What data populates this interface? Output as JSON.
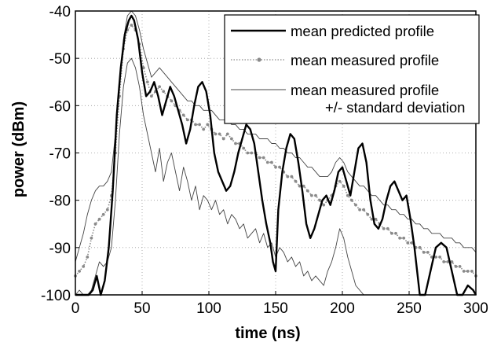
{
  "chart_data": {
    "type": "line",
    "xlabel": "time (ns)",
    "ylabel": "power (dBm)",
    "xlim": [
      0,
      300
    ],
    "ylim": [
      -100,
      -40
    ],
    "grid": true,
    "legend_position": "top-right",
    "x_ticks": [
      "0",
      "50",
      "100",
      "150",
      "200",
      "250",
      "300"
    ],
    "y_ticks": [
      "-40",
      "-50",
      "-60",
      "-70",
      "-80",
      "-90",
      "-100"
    ],
    "legend": [
      {
        "label": "mean predicted profile",
        "style": "solid-thick"
      },
      {
        "label": "mean measured profile",
        "style": "dotted-markers"
      },
      {
        "label": "mean measured profile",
        "label2": "+/- standard deviation",
        "style": "thin"
      }
    ],
    "colors": {
      "predicted": "#000000",
      "measured": "#8a8a8a",
      "deviation": "#444444"
    },
    "series": [
      {
        "key": "predicted",
        "x": [
          0,
          3,
          6,
          10,
          13,
          16,
          19,
          22,
          25,
          28,
          31,
          34,
          37,
          40,
          42,
          44,
          47,
          50,
          53,
          56,
          59,
          62,
          65,
          68,
          71,
          74,
          77,
          80,
          83,
          86,
          89,
          92,
          95,
          98,
          101,
          104,
          107,
          110,
          113,
          116,
          119,
          122,
          125,
          128,
          131,
          134,
          137,
          140,
          143,
          146,
          148,
          150,
          152,
          155,
          158,
          161,
          164,
          167,
          170,
          173,
          176,
          179,
          182,
          185,
          188,
          191,
          194,
          197,
          200,
          203,
          206,
          209,
          212,
          215,
          218,
          221,
          224,
          227,
          230,
          233,
          236,
          239,
          242,
          245,
          248,
          251,
          254,
          256,
          258,
          262,
          266,
          270,
          274,
          278,
          282,
          286,
          290,
          294,
          298,
          300
        ],
        "y": [
          -100,
          -100,
          -100,
          -100,
          -99,
          -96,
          -100,
          -97,
          -90,
          -78,
          -62,
          -52,
          -45,
          -42,
          -41,
          -42,
          -46,
          -53,
          -58,
          -57,
          -55,
          -58,
          -62,
          -59,
          -56,
          -58,
          -61,
          -64,
          -68,
          -65,
          -60,
          -56,
          -55,
          -57,
          -62,
          -70,
          -74,
          -76,
          -78,
          -77,
          -74,
          -70,
          -67,
          -64,
          -65,
          -68,
          -74,
          -80,
          -85,
          -89,
          -93,
          -95,
          -82,
          -74,
          -69,
          -66,
          -67,
          -72,
          -78,
          -85,
          -88,
          -86,
          -83,
          -80,
          -79,
          -81,
          -78,
          -74,
          -73,
          -76,
          -79,
          -74,
          -69,
          -68,
          -72,
          -80,
          -85,
          -86,
          -84,
          -80,
          -77,
          -76,
          -78,
          -80,
          -79,
          -84,
          -90,
          -95,
          -100,
          -100,
          -95,
          -90,
          -89,
          -90,
          -95,
          -100,
          -100,
          -98,
          -99,
          -100
        ]
      },
      {
        "key": "measured",
        "x": [
          0,
          3,
          6,
          9,
          12,
          15,
          18,
          21,
          24,
          27,
          30,
          33,
          36,
          39,
          42,
          45,
          48,
          51,
          54,
          57,
          60,
          63,
          66,
          69,
          72,
          75,
          78,
          81,
          84,
          87,
          90,
          93,
          96,
          99,
          102,
          105,
          108,
          111,
          114,
          117,
          120,
          123,
          126,
          129,
          132,
          135,
          138,
          141,
          144,
          147,
          150,
          153,
          156,
          159,
          162,
          165,
          168,
          171,
          174,
          177,
          180,
          183,
          186,
          189,
          192,
          195,
          198,
          201,
          204,
          207,
          210,
          213,
          216,
          219,
          222,
          225,
          228,
          231,
          234,
          237,
          240,
          243,
          246,
          249,
          252,
          255,
          258,
          261,
          264,
          267,
          270,
          273,
          276,
          279,
          282,
          285,
          288,
          291,
          294,
          297,
          300
        ],
        "y": [
          -96,
          -95,
          -94,
          -92,
          -88,
          -85,
          -84,
          -83,
          -82,
          -79,
          -70,
          -58,
          -48,
          -44,
          -43,
          -44,
          -47,
          -52,
          -55,
          -58,
          -57,
          -56,
          -57,
          -58,
          -59,
          -60,
          -61,
          -62,
          -63,
          -63,
          -64,
          -64,
          -65,
          -64,
          -65,
          -66,
          -66,
          -67,
          -66,
          -67,
          -68,
          -68,
          -69,
          -70,
          -70,
          -70,
          -71,
          -71,
          -72,
          -72,
          -73,
          -73,
          -74,
          -75,
          -75,
          -76,
          -77,
          -77,
          -78,
          -79,
          -79,
          -80,
          -81,
          -80,
          -79,
          -77,
          -76,
          -77,
          -79,
          -80,
          -81,
          -82,
          -82,
          -83,
          -84,
          -84,
          -85,
          -86,
          -86,
          -87,
          -87,
          -88,
          -88,
          -89,
          -89,
          -90,
          -90,
          -91,
          -91,
          -92,
          -92,
          -92,
          -93,
          -93,
          -93,
          -94,
          -94,
          -95,
          -95,
          -95,
          -96
        ]
      },
      {
        "key": "upper",
        "x": [
          0,
          3,
          6,
          9,
          12,
          15,
          18,
          21,
          24,
          27,
          30,
          33,
          36,
          39,
          42,
          45,
          48,
          51,
          54,
          57,
          60,
          63,
          66,
          69,
          72,
          75,
          78,
          81,
          84,
          87,
          90,
          93,
          96,
          99,
          102,
          105,
          108,
          111,
          114,
          117,
          120,
          123,
          126,
          129,
          132,
          135,
          138,
          141,
          144,
          147,
          150,
          153,
          156,
          159,
          162,
          165,
          168,
          171,
          174,
          177,
          180,
          183,
          186,
          189,
          192,
          195,
          198,
          201,
          204,
          207,
          210,
          213,
          216,
          219,
          222,
          225,
          228,
          231,
          234,
          237,
          240,
          243,
          246,
          249,
          252,
          255,
          258,
          261,
          264,
          267,
          270,
          273,
          276,
          279,
          282,
          285,
          288,
          291,
          294,
          297,
          300
        ],
        "y": [
          -93,
          -90,
          -87,
          -83,
          -80,
          -78,
          -77,
          -77,
          -76,
          -74,
          -66,
          -55,
          -46,
          -41,
          -40,
          -41,
          -44,
          -48,
          -51,
          -54,
          -53,
          -52,
          -53,
          -54,
          -55,
          -56,
          -57,
          -58,
          -59,
          -59,
          -60,
          -60,
          -61,
          -61,
          -61,
          -62,
          -63,
          -63,
          -63,
          -64,
          -64,
          -65,
          -65,
          -66,
          -66,
          -66,
          -67,
          -67,
          -67,
          -68,
          -68,
          -69,
          -69,
          -70,
          -70,
          -71,
          -71,
          -72,
          -73,
          -73,
          -74,
          -75,
          -75,
          -75,
          -74,
          -72,
          -71,
          -72,
          -74,
          -75,
          -76,
          -77,
          -77,
          -78,
          -79,
          -79,
          -80,
          -81,
          -81,
          -82,
          -82,
          -83,
          -83,
          -84,
          -84,
          -85,
          -85,
          -86,
          -86,
          -87,
          -87,
          -87,
          -88,
          -88,
          -88,
          -89,
          -89,
          -90,
          -90,
          -90,
          -91
        ]
      },
      {
        "key": "lower",
        "x": [
          0,
          3,
          6,
          9,
          12,
          15,
          18,
          21,
          24,
          27,
          30,
          33,
          36,
          39,
          42,
          45,
          48,
          51,
          54,
          57,
          60,
          63,
          66,
          69,
          72,
          75,
          78,
          81,
          84,
          87,
          90,
          93,
          96,
          99,
          102,
          105,
          108,
          111,
          114,
          117,
          120,
          123,
          126,
          129,
          132,
          135,
          138,
          141,
          144,
          147,
          150,
          153,
          156,
          159,
          162,
          165,
          168,
          171,
          174,
          177,
          180,
          183,
          186,
          189,
          192,
          195,
          198,
          201,
          204,
          207,
          210,
          213,
          216,
          219,
          222,
          225,
          228,
          231,
          234,
          237,
          240,
          243,
          246,
          249,
          252,
          255,
          258,
          261,
          264,
          267,
          270,
          273,
          276,
          279,
          282,
          285,
          288,
          291,
          294,
          297,
          300
        ],
        "y": [
          -100,
          -99,
          -100,
          -100,
          -99,
          -96,
          -93,
          -94,
          -93,
          -90,
          -80,
          -66,
          -56,
          -51,
          -50,
          -52,
          -56,
          -62,
          -66,
          -70,
          -74,
          -69,
          -76,
          -72,
          -70,
          -74,
          -78,
          -73,
          -76,
          -80,
          -77,
          -82,
          -79,
          -80,
          -82,
          -80,
          -83,
          -82,
          -85,
          -83,
          -84,
          -86,
          -85,
          -88,
          -87,
          -86,
          -89,
          -87,
          -90,
          -89,
          -92,
          -90,
          -91,
          -93,
          -92,
          -94,
          -93,
          -96,
          -95,
          -97,
          -96,
          -97,
          -98,
          -95,
          -93,
          -90,
          -86,
          -88,
          -92,
          -95,
          -98,
          -99,
          -100,
          -100,
          -100,
          -100,
          -100,
          -100,
          -100,
          -100,
          -100,
          -100,
          -100,
          -100,
          -100,
          -100,
          -100,
          -100,
          -100,
          -100,
          -100,
          -100,
          -100,
          -100,
          -100,
          -100,
          -100,
          -100,
          -100,
          -100,
          -100
        ]
      }
    ]
  }
}
